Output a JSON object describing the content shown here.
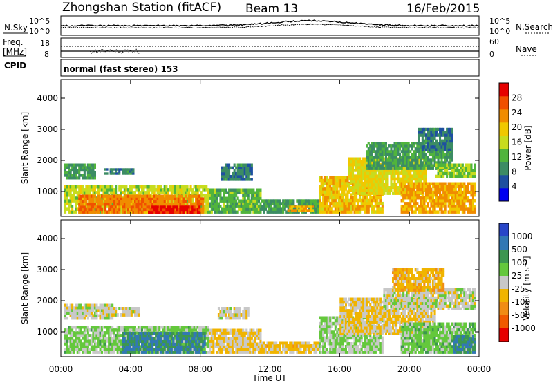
{
  "header": {
    "title": "Zhongshan Station (fitACF)",
    "beam": "Beam 13",
    "date": "16/Feb/2015"
  },
  "noise_panel": {
    "left_label": "N.Sky",
    "left_ticks": [
      "10^5",
      "10^0"
    ],
    "right_ticks": [
      "10^5",
      "10^0"
    ],
    "right_label": "N.Search"
  },
  "freq_panel": {
    "left_label_1": "Freq.",
    "left_label_2": "[MHz]",
    "left_ticks": [
      "18",
      "8"
    ],
    "right_ticks": [
      "60",
      "0"
    ],
    "right_label": "Nave"
  },
  "cpid": {
    "label": "CPID",
    "text": "normal (fast stereo) 153"
  },
  "colors": {
    "power_scale": [
      "#0000f0",
      "#1e50a0",
      "#3c8c64",
      "#50b43c",
      "#c8dc1e",
      "#f0c800",
      "#f08c00",
      "#f05000",
      "#e60000"
    ],
    "velocity_scale": [
      "#2846c8",
      "#3278b4",
      "#3c9650",
      "#64c83c",
      "#c8c8c8",
      "#f0b400",
      "#f08c14",
      "#f05a00",
      "#e60000"
    ]
  },
  "chart_data": [
    {
      "type": "heatmap",
      "name": "power",
      "ylabel": "Slant Range [km]",
      "yticks": [
        "1000",
        "2000",
        "3000",
        "4000"
      ],
      "ylim": [
        200,
        4600
      ],
      "xlim": [
        0,
        24
      ],
      "colorbar": {
        "label": "Power [dB]",
        "ticks": [
          "4",
          "8",
          "12",
          "16",
          "20",
          "24",
          "28"
        ],
        "range": [
          0,
          32
        ]
      },
      "regions": [
        {
          "x0": 0.2,
          "x1": 2.0,
          "y0": 1400,
          "y1": 1900,
          "v": 10
        },
        {
          "x0": 2.5,
          "x1": 4.2,
          "y0": 1550,
          "y1": 1750,
          "v": 8
        },
        {
          "x0": 0.2,
          "x1": 8.5,
          "y0": 300,
          "y1": 1200,
          "v": 16
        },
        {
          "x0": 1.0,
          "x1": 8.2,
          "y0": 300,
          "y1": 900,
          "v": 24
        },
        {
          "x0": 5.0,
          "x1": 8.0,
          "y0": 300,
          "y1": 550,
          "v": 30
        },
        {
          "x0": 8.5,
          "x1": 11.5,
          "y0": 300,
          "y1": 1100,
          "v": 12
        },
        {
          "x0": 9.2,
          "x1": 11.0,
          "y0": 1350,
          "y1": 1900,
          "v": 8
        },
        {
          "x0": 11.5,
          "x1": 14.8,
          "y0": 300,
          "y1": 750,
          "v": 10
        },
        {
          "x0": 13.0,
          "x1": 14.5,
          "y0": 350,
          "y1": 550,
          "v": 22
        },
        {
          "x0": 14.8,
          "x1": 18.5,
          "y0": 300,
          "y1": 1500,
          "v": 20
        },
        {
          "x0": 16.5,
          "x1": 21.0,
          "y0": 900,
          "y1": 2100,
          "v": 18
        },
        {
          "x0": 17.5,
          "x1": 22.5,
          "y0": 1700,
          "y1": 2600,
          "v": 10
        },
        {
          "x0": 19.5,
          "x1": 23.8,
          "y0": 300,
          "y1": 1300,
          "v": 22
        },
        {
          "x0": 21.5,
          "x1": 23.8,
          "y0": 1450,
          "y1": 1900,
          "v": 14
        },
        {
          "x0": 20.5,
          "x1": 22.5,
          "y0": 2300,
          "y1": 3050,
          "v": 8
        }
      ]
    },
    {
      "type": "heatmap",
      "name": "velocity",
      "ylabel": "Slant Range [km]",
      "yticks": [
        "1000",
        "2000",
        "3000",
        "4000"
      ],
      "ylim": [
        200,
        4600
      ],
      "xlim": [
        0,
        24
      ],
      "xticks": [
        "00:00",
        "04:00",
        "08:00",
        "12:00",
        "16:00",
        "20:00",
        "00:00"
      ],
      "xlabel": "Time UT",
      "colorbar": {
        "label": "Velocity [m s⁻¹]",
        "ticks": [
          "1000",
          "500",
          "100",
          "25",
          "-25",
          "-100",
          "-500",
          "-1000"
        ],
        "range": [
          -1200,
          1200
        ]
      },
      "regions": [
        {
          "x0": 0.2,
          "x1": 3.0,
          "y0": 1400,
          "y1": 1900,
          "v": 0
        },
        {
          "x0": 2.5,
          "x1": 4.5,
          "y0": 1500,
          "y1": 1800,
          "v": -50
        },
        {
          "x0": 0.2,
          "x1": 8.5,
          "y0": 300,
          "y1": 1200,
          "v": 200
        },
        {
          "x0": 3.5,
          "x1": 8.3,
          "y0": 300,
          "y1": 1000,
          "v": 700
        },
        {
          "x0": 9.0,
          "x1": 10.8,
          "y0": 1400,
          "y1": 1800,
          "v": 0
        },
        {
          "x0": 8.5,
          "x1": 11.5,
          "y0": 300,
          "y1": 1100,
          "v": -150
        },
        {
          "x0": 11.5,
          "x1": 14.8,
          "y0": 300,
          "y1": 700,
          "v": -200
        },
        {
          "x0": 14.8,
          "x1": 18.5,
          "y0": 300,
          "y1": 1500,
          "v": 150
        },
        {
          "x0": 16.0,
          "x1": 21.5,
          "y0": 900,
          "y1": 2100,
          "v": -150
        },
        {
          "x0": 18.5,
          "x1": 23.8,
          "y0": 1700,
          "y1": 2400,
          "v": 0
        },
        {
          "x0": 19.0,
          "x1": 22.0,
          "y0": 2300,
          "y1": 3050,
          "v": -300
        },
        {
          "x0": 19.5,
          "x1": 23.8,
          "y0": 300,
          "y1": 1300,
          "v": 250
        },
        {
          "x0": 22.5,
          "x1": 23.8,
          "y0": 300,
          "y1": 900,
          "v": 700
        }
      ]
    }
  ]
}
